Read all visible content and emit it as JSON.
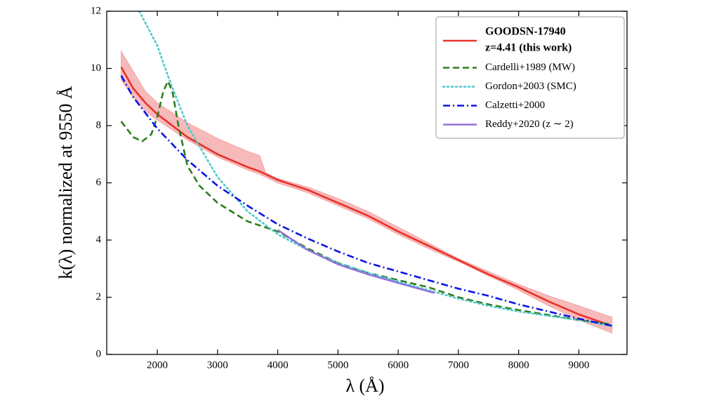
{
  "chart_data": {
    "type": "line",
    "xlabel": "λ (Å)",
    "ylabel": "k(λ) normalized at 9550 Å",
    "xlim": [
      1160,
      9800
    ],
    "ylim": [
      0,
      12
    ],
    "xticks": [
      2000,
      3000,
      4000,
      5000,
      6000,
      7000,
      8000,
      9000
    ],
    "yticks": [
      0,
      2,
      4,
      6,
      8,
      10,
      12
    ],
    "legend": "upper right",
    "series": [
      {
        "name": [
          "GOODSN-17940",
          "z=4.41 (this work)"
        ],
        "color": "#e8322a",
        "linestyle": "solid",
        "x": [
          1400,
          1600,
          1800,
          2000,
          2500,
          3000,
          3500,
          3700,
          3800,
          4000,
          4500,
          5000,
          5500,
          6000,
          6500,
          7000,
          7500,
          8000,
          8500,
          9000,
          9550
        ],
        "values": [
          10.05,
          9.3,
          8.8,
          8.4,
          7.6,
          7.0,
          6.55,
          6.4,
          6.3,
          6.1,
          5.75,
          5.3,
          4.85,
          4.3,
          3.8,
          3.3,
          2.8,
          2.35,
          1.85,
          1.4,
          1.0
        ],
        "band": {
          "color": "#f4a3a3",
          "upper": [
            10.6,
            9.9,
            9.2,
            8.8,
            8.1,
            7.55,
            7.1,
            6.95,
            6.35,
            6.15,
            5.85,
            5.45,
            5.0,
            4.45,
            3.9,
            3.35,
            2.9,
            2.45,
            2.05,
            1.7,
            1.3
          ],
          "lower": [
            9.6,
            9.0,
            8.5,
            8.2,
            7.5,
            6.9,
            6.45,
            6.3,
            6.2,
            6.0,
            5.65,
            5.2,
            4.75,
            4.2,
            3.7,
            3.25,
            2.75,
            2.25,
            1.7,
            1.2,
            0.75
          ]
        }
      },
      {
        "name": "Cardelli+1989 (MW)",
        "color": "#2e7d1e",
        "linestyle": "dashed",
        "x": [
          1400,
          1600,
          1750,
          1900,
          2000,
          2100,
          2175,
          2250,
          2350,
          2500,
          2700,
          3000,
          3500,
          4000,
          4500,
          5000,
          5500,
          6000,
          6500,
          7000,
          7500,
          8000,
          8500,
          9000,
          9550
        ],
        "values": [
          8.15,
          7.6,
          7.45,
          7.7,
          8.3,
          9.2,
          9.55,
          9.2,
          8.0,
          6.6,
          5.9,
          5.3,
          4.65,
          4.3,
          3.7,
          3.2,
          2.85,
          2.6,
          2.35,
          2.0,
          1.75,
          1.55,
          1.38,
          1.2,
          1.05
        ]
      },
      {
        "name": "Gordon+2003 (SMC)",
        "color": "#4cc9c9",
        "linestyle": "dotted",
        "x": [
          1700,
          2000,
          2200,
          2500,
          3000,
          3500,
          4000,
          4500,
          5000,
          5500,
          6000,
          6500,
          7000,
          7500,
          8000,
          8500,
          9000,
          9550
        ],
        "values": [
          12.0,
          10.8,
          9.6,
          8.0,
          6.2,
          5.0,
          4.2,
          3.65,
          3.2,
          2.85,
          2.55,
          2.25,
          1.95,
          1.7,
          1.5,
          1.35,
          1.2,
          1.0
        ]
      },
      {
        "name": "Calzetti+2000",
        "color": "#0a14e6",
        "linestyle": "dashdot",
        "x": [
          1400,
          1600,
          2000,
          2500,
          3000,
          3500,
          4000,
          4500,
          5000,
          5500,
          6000,
          6500,
          7000,
          7500,
          8000,
          8500,
          9000,
          9550
        ],
        "values": [
          9.75,
          9.0,
          7.9,
          6.8,
          5.9,
          5.2,
          4.55,
          4.05,
          3.6,
          3.2,
          2.9,
          2.6,
          2.3,
          2.05,
          1.75,
          1.5,
          1.25,
          1.0
        ]
      },
      {
        "name": "Reddy+2020 (z ∼ 2)",
        "color": "#9370db",
        "linestyle": "solid",
        "x": [
          4000,
          4500,
          5000,
          5500,
          6000,
          6600
        ],
        "values": [
          4.35,
          3.65,
          3.15,
          2.8,
          2.5,
          2.15
        ]
      }
    ]
  }
}
